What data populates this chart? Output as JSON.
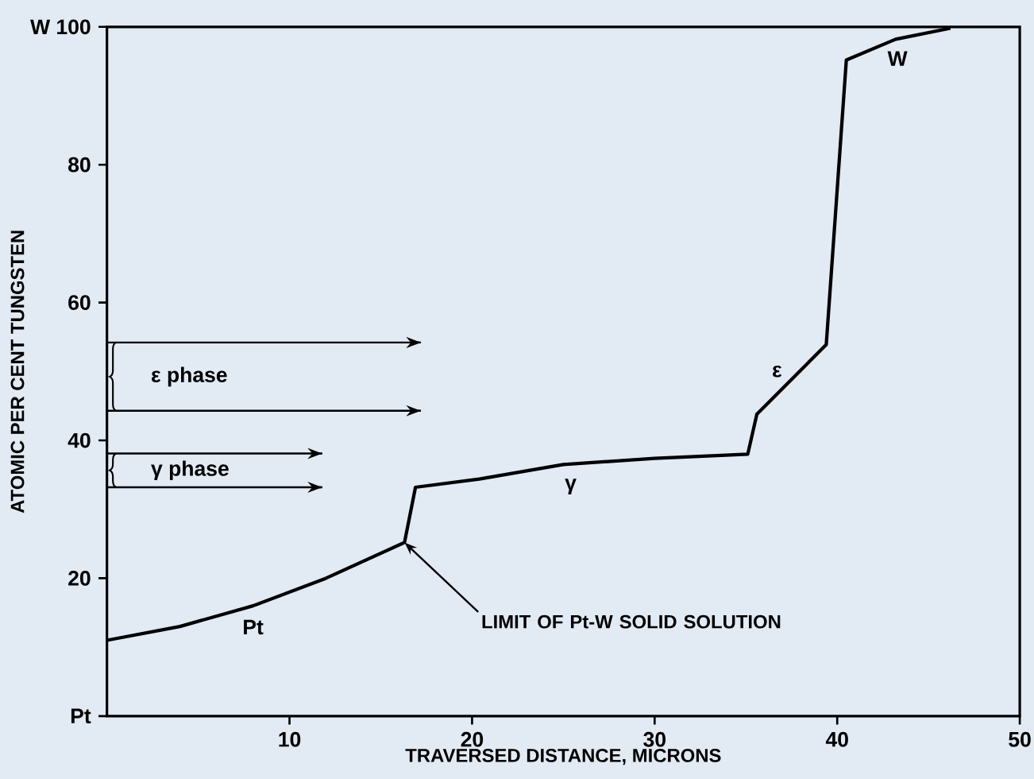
{
  "chart_data": {
    "type": "line",
    "xlabel": "TRAVERSED DISTANCE, MICRONS",
    "ylabel": "ATOMIC PER CENT TUNGSTEN",
    "series": [
      {
        "color": "#000000",
        "x": [
          0,
          4,
          8,
          12,
          16.3,
          16.9,
          20.4,
          25,
          30,
          35.1,
          35.6,
          39.4,
          40.5,
          43.2,
          46.2
        ],
        "values": [
          11,
          13,
          16,
          20,
          25.2,
          33.2,
          34.4,
          36.5,
          37.4,
          38,
          43.8,
          53.9,
          95.2,
          98.2,
          99.8
        ]
      }
    ],
    "xlim": [
      0,
      50
    ],
    "ylim": [
      0,
      100
    ],
    "xticks": [
      10,
      20,
      30,
      40,
      50
    ],
    "yticks": [
      {
        "value": 0,
        "label": "Pt"
      },
      20,
      40,
      60,
      80,
      {
        "value": 100,
        "label": "W 100"
      }
    ],
    "ref_lines": [
      {
        "axis": "y",
        "value": 54.2,
        "label": "ε phase"
      },
      {
        "axis": "y",
        "value": 44.3
      },
      {
        "axis": "y",
        "value": 38.1,
        "label": "γ phase"
      },
      {
        "axis": "y",
        "value": 33.2
      }
    ],
    "annotations": [
      "Pt",
      "γ",
      "ε",
      "W",
      {
        "text": "LIMIT OF Pt-W SOLID SOLUTION",
        "x": 16.3,
        "y": 25.2
      }
    ],
    "grid": false,
    "marker": "none",
    "line_style": "solid"
  }
}
